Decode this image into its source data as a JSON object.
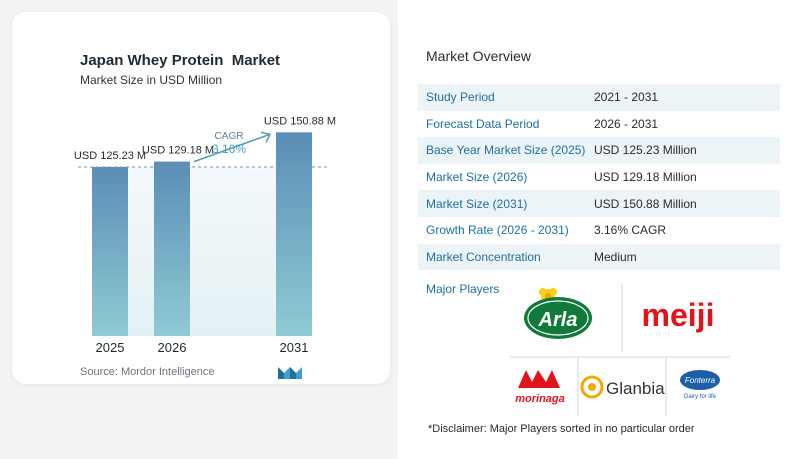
{
  "chart_data": {
    "type": "bar",
    "title": "Japan Whey Protein  Market",
    "subtitle": "Market Size in USD Million",
    "categories": [
      "2025",
      "2026",
      "2031"
    ],
    "values": [
      125.23,
      129.18,
      150.88
    ],
    "value_labels": [
      "USD 125.23 M",
      "USD 129.18 M",
      "USD 150.88 M"
    ],
    "cagr_label": "CAGR",
    "cagr_value": "3.16%",
    "ylim": [
      0,
      160
    ],
    "colors": {
      "bar_top": "#5a8eb6",
      "bar_bottom": "#8ecbd3",
      "arrow": "#4f9bb8",
      "reference_line": "#7f93a3"
    }
  },
  "source": "Source:  Mordor Intelligence",
  "overview": {
    "title": "Market Overview",
    "rows": [
      {
        "label": "Study Period",
        "value": "2021 - 2031"
      },
      {
        "label": "Forecast Data Period",
        "value": "2026 - 2031"
      },
      {
        "label": "Base Year Market Size (2025)",
        "value": "USD 125.23 Million"
      },
      {
        "label": "Market Size (2026)",
        "value": "USD 129.18 Million"
      },
      {
        "label": "Market Size (2031)",
        "value": "USD 150.88 Million"
      },
      {
        "label": "Growth Rate (2026 - 2031)",
        "value": "3.16% CAGR"
      },
      {
        "label": "Market Concentration",
        "value": "Medium"
      }
    ]
  },
  "players": {
    "title": "Major Players",
    "logos": [
      "Arla",
      "meiji",
      "morinaga",
      "Glanbia",
      "Fonterra"
    ],
    "fonterra_tagline": "Dairy for life"
  },
  "disclaimer": "*Disclaimer: Major Players sorted in no particular order"
}
